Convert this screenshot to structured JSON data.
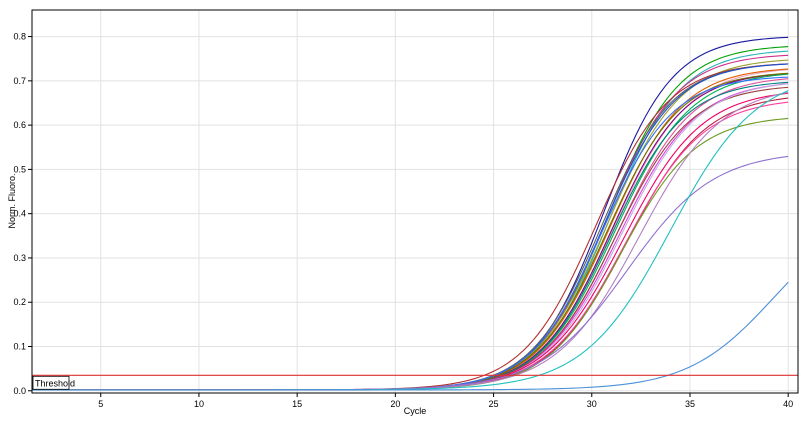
{
  "chart_data": {
    "type": "line",
    "xlabel": "Cycle",
    "ylabel": "Norm. Fluoro.",
    "xlim": [
      1.5,
      40.5
    ],
    "ylim": [
      -0.005,
      0.86
    ],
    "x_ticks": [
      5,
      10,
      15,
      20,
      25,
      30,
      35,
      40
    ],
    "y_ticks": [
      0.0,
      0.1,
      0.2,
      0.3,
      0.4,
      0.5,
      0.6,
      0.7,
      0.8
    ],
    "y_tick_labels": [
      "0.0",
      "0.1",
      "0.2",
      "0.3",
      "0.4",
      "0.5",
      "0.6",
      "0.7",
      "0.8"
    ],
    "grid": true,
    "threshold": {
      "label": "Threshold",
      "value": 0.035,
      "color": "#e03030"
    },
    "series_style": {
      "type": "sigmoid",
      "x_start": 1,
      "x_end": 40
    },
    "series": [
      {
        "color": "#1a1aa0",
        "max": 0.8,
        "mid": 30.6,
        "slope": 1.75,
        "base": 0.002
      },
      {
        "color": "#00a000",
        "max": 0.78,
        "mid": 30.8,
        "slope": 1.8,
        "base": 0.002
      },
      {
        "color": "#2ab4b4",
        "max": 0.77,
        "mid": 30.9,
        "slope": 1.8,
        "base": 0.002
      },
      {
        "color": "#d0308a",
        "max": 0.76,
        "mid": 30.7,
        "slope": 1.8,
        "base": 0.002
      },
      {
        "color": "#a0a030",
        "max": 0.75,
        "mid": 30.8,
        "slope": 1.85,
        "base": 0.002
      },
      {
        "color": "#b03030",
        "max": 0.74,
        "mid": 30.2,
        "slope": 1.85,
        "base": 0.002
      },
      {
        "color": "#606060",
        "max": 0.74,
        "mid": 30.5,
        "slope": 1.8,
        "base": 0.002
      },
      {
        "color": "#2050d0",
        "max": 0.74,
        "mid": 30.6,
        "slope": 1.8,
        "base": 0.002
      },
      {
        "color": "#f0a0c0",
        "max": 0.73,
        "mid": 31.1,
        "slope": 1.9,
        "base": 0.002
      },
      {
        "color": "#e06000",
        "max": 0.73,
        "mid": 30.9,
        "slope": 1.85,
        "base": 0.002
      },
      {
        "color": "#800080",
        "max": 0.72,
        "mid": 31.0,
        "slope": 1.85,
        "base": 0.002
      },
      {
        "color": "#00b050",
        "max": 0.72,
        "mid": 31.2,
        "slope": 1.9,
        "base": 0.002
      },
      {
        "color": "#707000",
        "max": 0.72,
        "mid": 30.8,
        "slope": 1.85,
        "base": 0.002
      },
      {
        "color": "#e0509a",
        "max": 0.71,
        "mid": 31.3,
        "slope": 1.9,
        "base": 0.002
      },
      {
        "color": "#3070ff",
        "max": 0.71,
        "mid": 30.5,
        "slope": 1.8,
        "base": 0.002
      },
      {
        "color": "#008080",
        "max": 0.7,
        "mid": 31.0,
        "slope": 1.85,
        "base": 0.002
      },
      {
        "color": "#e040e0",
        "max": 0.7,
        "mid": 31.4,
        "slope": 1.95,
        "base": 0.002
      },
      {
        "color": "#a04040",
        "max": 0.69,
        "mid": 31.2,
        "slope": 1.9,
        "base": 0.002
      },
      {
        "color": "#c0b0e0",
        "max": 0.7,
        "mid": 31.5,
        "slope": 1.95,
        "base": 0.002
      },
      {
        "color": "#f00060",
        "max": 0.68,
        "mid": 31.6,
        "slope": 2.0,
        "base": 0.002
      },
      {
        "color": "#c02040",
        "max": 0.67,
        "mid": 31.8,
        "slope": 2.0,
        "base": 0.002
      },
      {
        "color": "#ff40a0",
        "max": 0.66,
        "mid": 31.7,
        "slope": 2.0,
        "base": 0.002
      },
      {
        "color": "#6a9a20",
        "max": 0.62,
        "mid": 31.5,
        "slope": 1.9,
        "base": 0.002
      },
      {
        "color": "#b080c0",
        "max": 0.69,
        "mid": 32.4,
        "slope": 2.1,
        "base": 0.002
      },
      {
        "color": "#9070d0",
        "max": 0.54,
        "mid": 31.8,
        "slope": 2.2,
        "base": 0.002
      },
      {
        "color": "#20c0c0",
        "max": 0.72,
        "mid": 34.0,
        "slope": 2.2,
        "base": 0.002
      },
      {
        "color": "#4a90d8",
        "max": 0.42,
        "mid": 39.3,
        "slope": 2.2,
        "base": 0.002
      }
    ]
  }
}
